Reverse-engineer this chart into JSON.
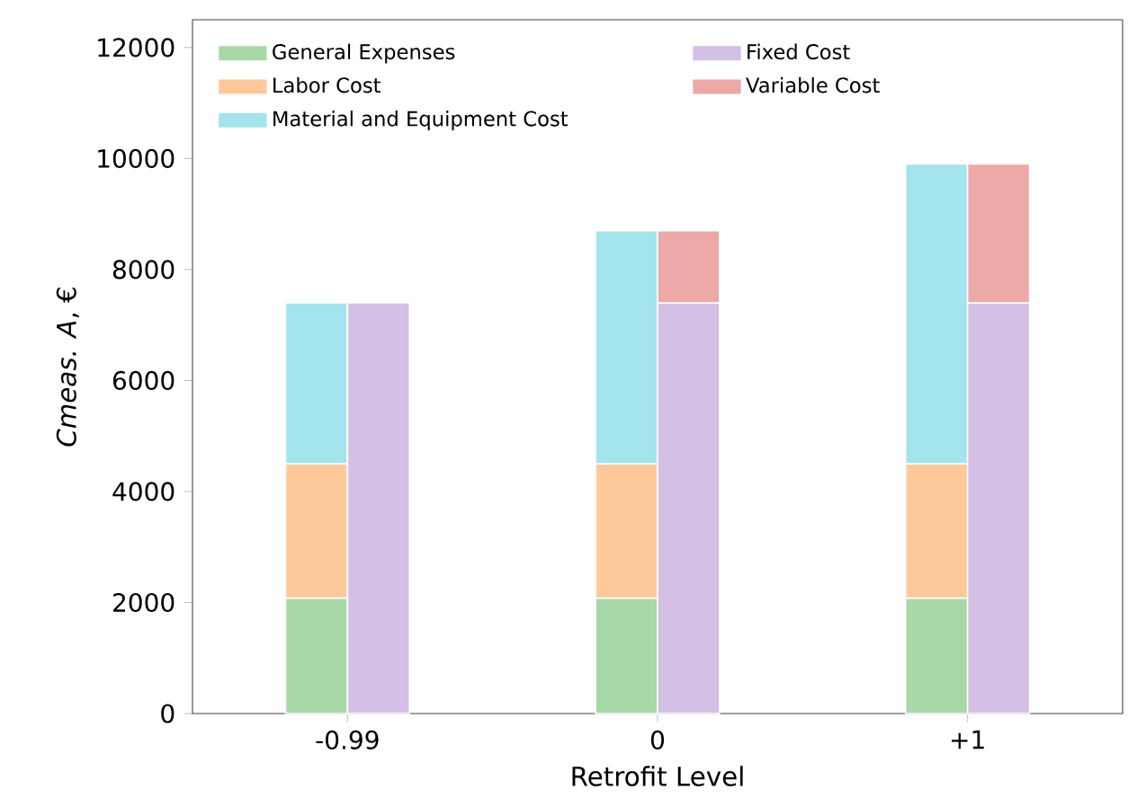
{
  "chart_data": {
    "type": "bar",
    "xlabel": "Retrofit Level",
    "ylabel": "*Cmeas. A*, €",
    "categories": [
      "-0.99",
      "0",
      "+1"
    ],
    "series": [
      {
        "name": "General Expenses",
        "color": "#a8d8a8",
        "base": [
          0,
          0,
          0
        ],
        "values": [
          2080,
          2080,
          2080
        ]
      },
      {
        "name": "Labor Cost",
        "color": "#fdc99b",
        "base": [
          2080,
          2080,
          2080
        ],
        "values": [
          2420,
          2420,
          2420
        ]
      },
      {
        "name": "Material and Equipment Cost",
        "color": "#a4e4ec",
        "base": [
          4500,
          4500,
          4500
        ],
        "values": [
          2900,
          4200,
          5400
        ]
      },
      {
        "name": "Fixed Cost",
        "color": "#d4c0e4",
        "base": [
          0,
          0,
          0
        ],
        "values": [
          7400,
          7400,
          7400
        ]
      },
      {
        "name": "Variable Cost",
        "color": "#eda8a8",
        "base": [
          null,
          7400,
          7400
        ],
        "values": [
          null,
          1300,
          2500
        ]
      }
    ],
    "ylim": [
      0,
      12500
    ],
    "yticks": [
      0,
      2000,
      4000,
      6000,
      8000,
      10000,
      12000
    ],
    "legend": "top left"
  }
}
